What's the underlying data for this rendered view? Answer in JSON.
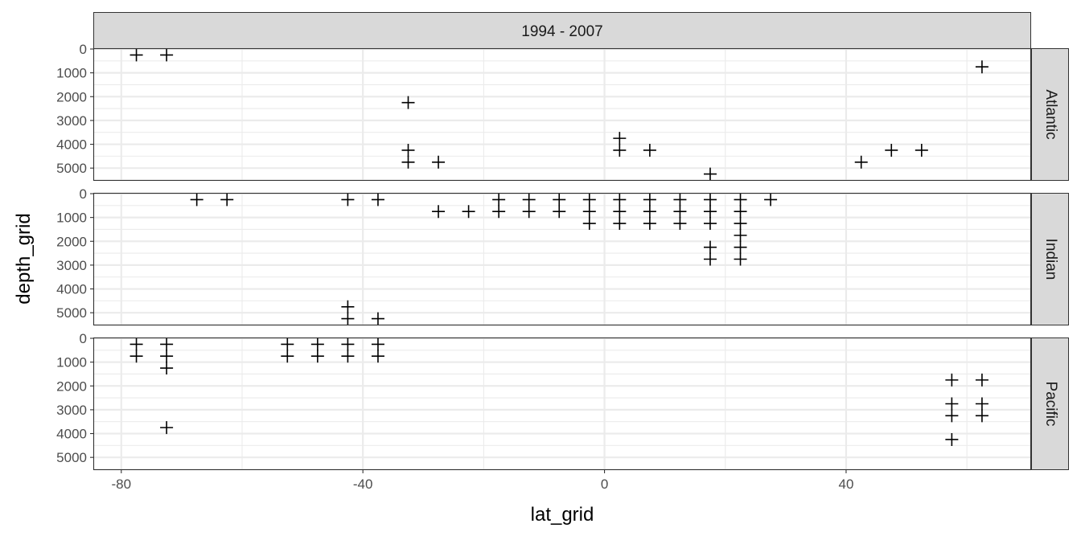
{
  "chart_data": {
    "type": "scatter",
    "xlabel": "lat_grid",
    "ylabel": "depth_grid",
    "col_strip": "1994 - 2007",
    "xlim": [
      -84.5,
      70.5
    ],
    "x_ticks": [
      -80,
      -40,
      0,
      40
    ],
    "x_tick_labels": [
      "-80",
      "-40",
      "0",
      "40"
    ],
    "ylim": [
      5500,
      0
    ],
    "y_reversed": true,
    "y_ticks": [
      0,
      1000,
      2000,
      3000,
      4000,
      5000
    ],
    "y_tick_labels": [
      "0",
      "1000",
      "2000",
      "3000",
      "4000",
      "5000"
    ],
    "marker": "plus",
    "grid": true,
    "colors": {
      "strip_fill": "#d9d9d9",
      "strip_border": "#333333",
      "grid": "#ebebeb",
      "points": "#000000",
      "panel_border": "#333333"
    },
    "panels": [
      {
        "name": "Atlantic",
        "points": [
          [
            -77.5,
            250
          ],
          [
            -72.5,
            250
          ],
          [
            -32.5,
            2250
          ],
          [
            -32.5,
            4250
          ],
          [
            -32.5,
            4750
          ],
          [
            -27.5,
            4750
          ],
          [
            2.5,
            3750
          ],
          [
            2.5,
            4250
          ],
          [
            7.5,
            4250
          ],
          [
            17.5,
            5250
          ],
          [
            42.5,
            4750
          ],
          [
            47.5,
            4250
          ],
          [
            52.5,
            4250
          ],
          [
            62.5,
            750
          ]
        ]
      },
      {
        "name": "Indian",
        "points": [
          [
            -67.5,
            250
          ],
          [
            -62.5,
            250
          ],
          [
            -42.5,
            250
          ],
          [
            -42.5,
            4750
          ],
          [
            -42.5,
            5250
          ],
          [
            -37.5,
            250
          ],
          [
            -37.5,
            5250
          ],
          [
            -27.5,
            750
          ],
          [
            -22.5,
            750
          ],
          [
            -17.5,
            250
          ],
          [
            -17.5,
            750
          ],
          [
            -12.5,
            250
          ],
          [
            -12.5,
            750
          ],
          [
            -7.5,
            250
          ],
          [
            -7.5,
            750
          ],
          [
            -2.5,
            250
          ],
          [
            -2.5,
            750
          ],
          [
            -2.5,
            1250
          ],
          [
            2.5,
            250
          ],
          [
            2.5,
            750
          ],
          [
            2.5,
            1250
          ],
          [
            7.5,
            250
          ],
          [
            7.5,
            750
          ],
          [
            7.5,
            1250
          ],
          [
            12.5,
            250
          ],
          [
            12.5,
            750
          ],
          [
            12.5,
            1250
          ],
          [
            17.5,
            250
          ],
          [
            17.5,
            750
          ],
          [
            17.5,
            1250
          ],
          [
            17.5,
            2250
          ],
          [
            17.5,
            2750
          ],
          [
            22.5,
            250
          ],
          [
            22.5,
            750
          ],
          [
            22.5,
            1250
          ],
          [
            22.5,
            1750
          ],
          [
            22.5,
            2250
          ],
          [
            22.5,
            2750
          ],
          [
            27.5,
            250
          ]
        ]
      },
      {
        "name": "Pacific",
        "points": [
          [
            -77.5,
            250
          ],
          [
            -77.5,
            750
          ],
          [
            -72.5,
            250
          ],
          [
            -72.5,
            750
          ],
          [
            -72.5,
            1250
          ],
          [
            -72.5,
            3750
          ],
          [
            -52.5,
            250
          ],
          [
            -52.5,
            750
          ],
          [
            -47.5,
            250
          ],
          [
            -47.5,
            750
          ],
          [
            -42.5,
            250
          ],
          [
            -42.5,
            750
          ],
          [
            -37.5,
            250
          ],
          [
            -37.5,
            750
          ],
          [
            57.5,
            1750
          ],
          [
            57.5,
            2750
          ],
          [
            57.5,
            3250
          ],
          [
            57.5,
            4250
          ],
          [
            62.5,
            1750
          ],
          [
            62.5,
            2750
          ],
          [
            62.5,
            3250
          ]
        ]
      }
    ]
  }
}
